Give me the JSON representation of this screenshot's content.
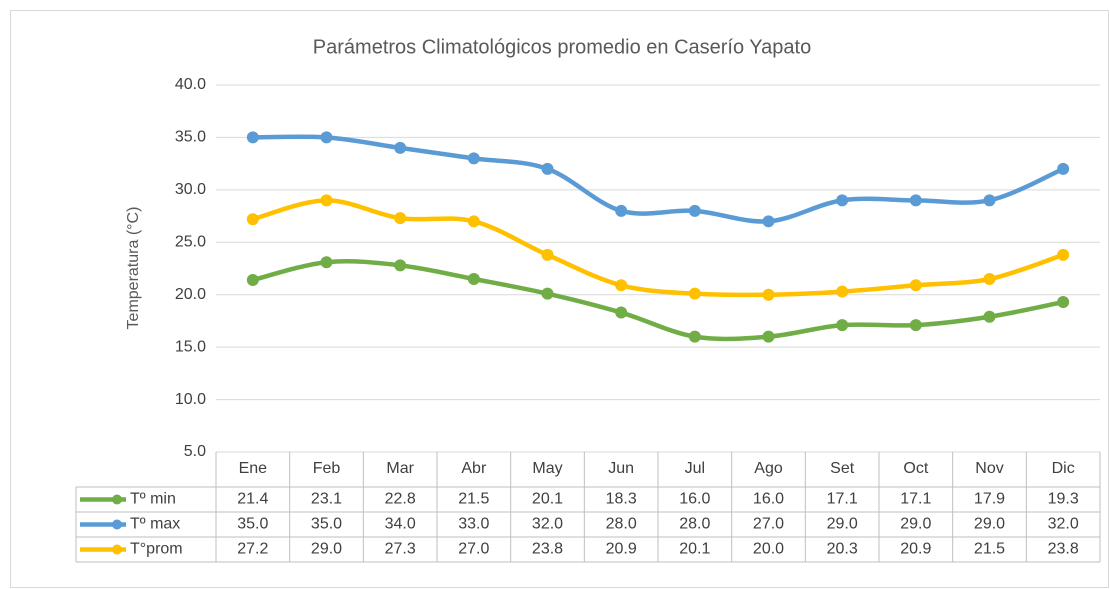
{
  "chart_data": {
    "type": "line",
    "title": "Parámetros Climatológicos promedio en Caserío Yapato",
    "y_label": "Temperatura (°C)",
    "categories": [
      "Ene",
      "Feb",
      "Mar",
      "Abr",
      "May",
      "Jun",
      "Jul",
      "Ago",
      "Set",
      "Oct",
      "Nov",
      "Dic"
    ],
    "series": [
      {
        "name": "Tº min",
        "color": "#70ad47",
        "values": [
          21.4,
          23.1,
          22.8,
          21.5,
          20.1,
          18.3,
          16,
          16,
          17.1,
          17.1,
          17.9,
          19.3
        ],
        "value_labels": [
          "21.4",
          "23.1",
          "22.8",
          "21.5",
          "20.1",
          "18.3",
          "16.0",
          "16.0",
          "17.1",
          "17.1",
          "17.9",
          "19.3"
        ]
      },
      {
        "name": "Tº max",
        "color": "#5b9bd5",
        "values": [
          35,
          35,
          34,
          33,
          32,
          28,
          28,
          27,
          29,
          29,
          29,
          32
        ],
        "value_labels": [
          "35.0",
          "35.0",
          "34.0",
          "33.0",
          "32.0",
          "28.0",
          "28.0",
          "27.0",
          "29.0",
          "29.0",
          "29.0",
          "32.0"
        ]
      },
      {
        "name": "T°prom",
        "color": "#ffc000",
        "values": [
          27.2,
          29,
          27.3,
          27,
          23.8,
          20.9,
          20.1,
          20,
          20.3,
          20.9,
          21.5,
          23.8
        ],
        "value_labels": [
          "27.2",
          "29.0",
          "27.3",
          "27.0",
          "23.8",
          "20.9",
          "20.1",
          "20.0",
          "20.3",
          "20.9",
          "21.5",
          "23.8"
        ]
      }
    ],
    "ylim": [
      5,
      40
    ],
    "yticks": [
      {
        "value": 5,
        "label": "5.0"
      },
      {
        "value": 10,
        "label": "10.0"
      },
      {
        "value": 15,
        "label": "15.0"
      },
      {
        "value": 20,
        "label": "20.0"
      },
      {
        "value": 25,
        "label": "25.0"
      },
      {
        "value": 30,
        "label": "30.0"
      },
      {
        "value": 35,
        "label": "35.0"
      },
      {
        "value": 40,
        "label": "40.0"
      }
    ],
    "grid": true,
    "smooth": true
  }
}
